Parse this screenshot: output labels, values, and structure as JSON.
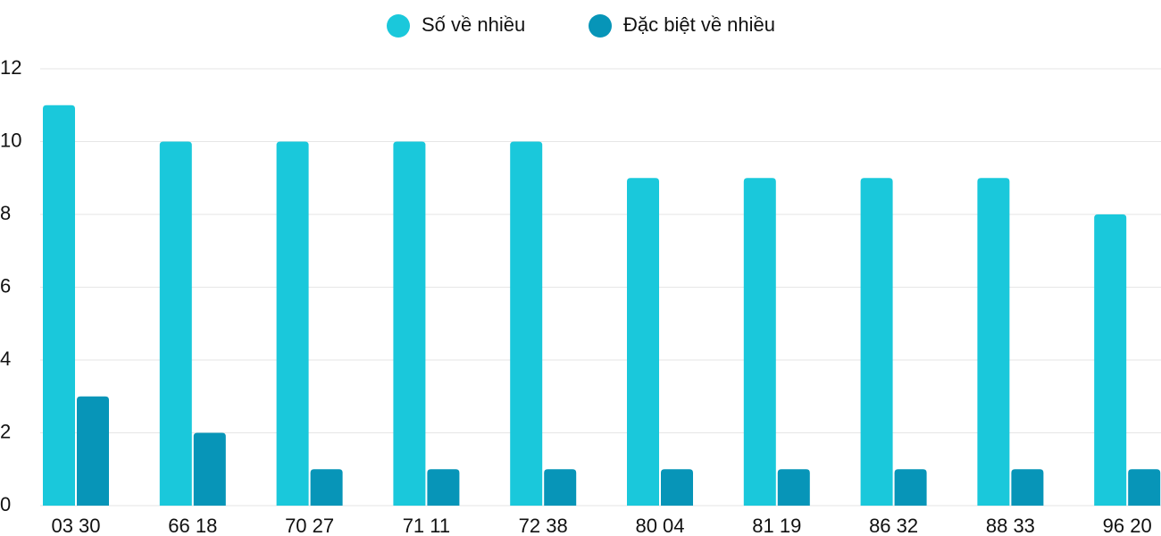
{
  "chart_data": {
    "type": "bar",
    "categories": [
      "03 30",
      "66 18",
      "70 27",
      "71 11",
      "72 38",
      "80 04",
      "81 19",
      "86 32",
      "88 33",
      "96 20"
    ],
    "series": [
      {
        "name": "Số về nhiều",
        "color": "#1ac8db",
        "values": [
          11,
          10,
          10,
          10,
          10,
          9,
          9,
          9,
          9,
          8
        ]
      },
      {
        "name": "Đặc biệt về nhiều",
        "color": "#0795b8",
        "values": [
          3,
          2,
          1,
          1,
          1,
          1,
          1,
          1,
          1,
          1
        ]
      }
    ],
    "ylim": [
      0,
      12
    ],
    "yticks": [
      0,
      2,
      4,
      6,
      8,
      10,
      12
    ],
    "grid": true,
    "legend": "top"
  }
}
